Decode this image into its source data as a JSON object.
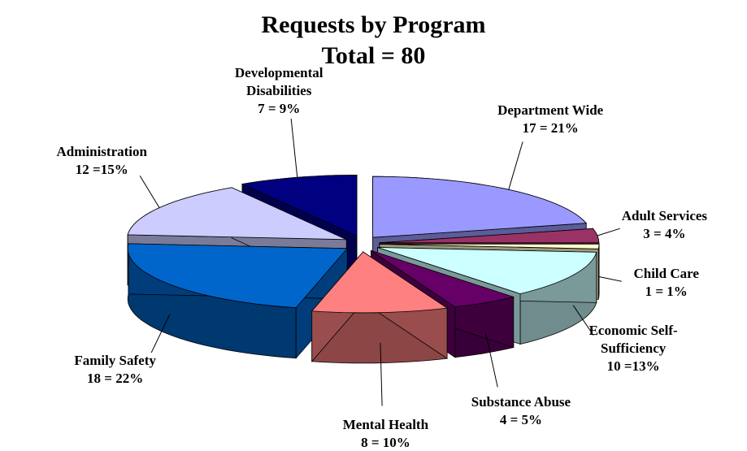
{
  "chart_data": {
    "type": "pie3d",
    "title": "Requests by Program",
    "subtitle": "Total = 80",
    "categories": [
      "Department Wide",
      "Adult Services",
      "Child Care",
      "Economic Self-Sufficiency",
      "Substance Abuse",
      "Mental Health",
      "Family Safety",
      "Administration",
      "Developmental Disabilities"
    ],
    "values": [
      17,
      3,
      1,
      10,
      4,
      8,
      18,
      12,
      7
    ],
    "value_labels": [
      "17 = 21%",
      "3 = 4%",
      "1 = 1%",
      "10 =13%",
      "4 = 5%",
      "8 = 10%",
      "18 = 22%",
      "12 =15%",
      "7 = 9%"
    ],
    "colors": [
      "#9999ff",
      "#993366",
      "#ffffcc",
      "#ccffff",
      "#660066",
      "#ff8080",
      "#0066cc",
      "#ccccff",
      "#000080"
    ]
  }
}
